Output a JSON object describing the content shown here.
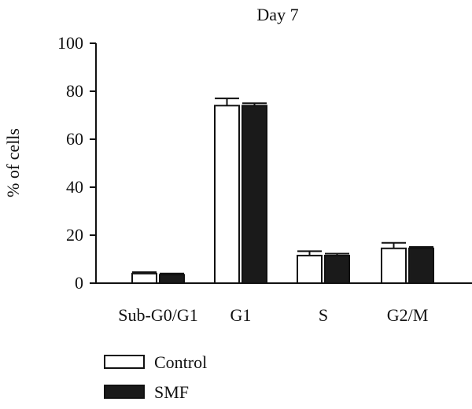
{
  "chart_data": {
    "type": "bar",
    "title": "Day 7",
    "ylabel": "% of cells",
    "xlabel": "",
    "ylim": [
      0,
      100
    ],
    "yticks": [
      0,
      20,
      40,
      60,
      80,
      100
    ],
    "categories": [
      "Sub-G0/G1",
      "G1",
      "S",
      "G2/M"
    ],
    "series": [
      {
        "name": "Control",
        "values": [
          4,
          74,
          11.5,
          14.5
        ],
        "errors": [
          0.6,
          3,
          1.8,
          2.3
        ],
        "color": "#ffffff"
      },
      {
        "name": "SMF",
        "values": [
          3.5,
          74,
          11.5,
          14.5
        ],
        "errors": [
          0.5,
          1,
          0.8,
          0.6
        ],
        "color": "#1a1a1a"
      }
    ],
    "legend_position": "bottom-left",
    "grid": false
  }
}
